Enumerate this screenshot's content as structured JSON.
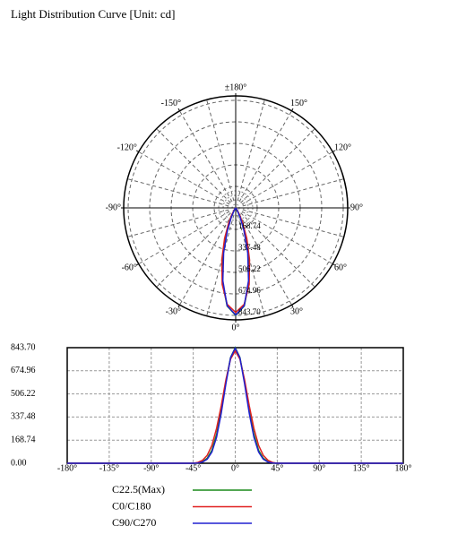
{
  "chart_data": [
    {
      "type": "polar",
      "title": "Light Distribution Curve [Unit: cd]",
      "rlim": [
        0,
        843.7
      ],
      "rticks": [
        {
          "value": 168.74,
          "label": "168.74"
        },
        {
          "value": 337.48,
          "label": "337.48"
        },
        {
          "value": 506.22,
          "label": "506.22"
        },
        {
          "value": 674.96,
          "label": "674.96"
        },
        {
          "value": 843.7,
          "label": "843.70"
        }
      ],
      "angle_ticks": [
        {
          "value": 0,
          "label": "0°"
        },
        {
          "value": 30,
          "label": "30°"
        },
        {
          "value": 60,
          "label": "60°"
        },
        {
          "value": 90,
          "label": "90°"
        },
        {
          "value": 120,
          "label": "120°"
        },
        {
          "value": 150,
          "label": "150°"
        },
        {
          "value": 180,
          "label": "±180°"
        },
        {
          "value": -150,
          "label": "-150°"
        },
        {
          "value": -120,
          "label": "-120°"
        },
        {
          "value": -90,
          "label": "-90°"
        },
        {
          "value": -60,
          "label": "-60°"
        },
        {
          "value": -30,
          "label": "-30°"
        }
      ],
      "x": [
        -180,
        -45,
        -40,
        -35,
        -30,
        -25,
        -20,
        -15,
        -10,
        -5,
        0,
        5,
        10,
        15,
        20,
        25,
        30,
        35,
        40,
        45,
        180
      ],
      "series": [
        {
          "name": "C22.5(Max)",
          "color": "#1a8a1a",
          "values": [
            0,
            0,
            3,
            12,
            37,
            95,
            211,
            387,
            596,
            773,
            843.7,
            773,
            596,
            387,
            211,
            95,
            37,
            12,
            3,
            0,
            0
          ]
        },
        {
          "name": "C0/C180",
          "color": "#e02020",
          "values": [
            0,
            0,
            6,
            22,
            58,
            130,
            255,
            420,
            610,
            760,
            820,
            760,
            610,
            420,
            255,
            130,
            58,
            22,
            6,
            0,
            0
          ]
        },
        {
          "name": "C90/C270",
          "color": "#2020d0",
          "values": [
            0,
            0,
            2,
            9,
            30,
            82,
            190,
            365,
            580,
            770,
            840,
            770,
            580,
            365,
            190,
            82,
            30,
            9,
            2,
            0,
            0
          ]
        }
      ]
    },
    {
      "type": "line",
      "xlim": [
        -180,
        180
      ],
      "xticks": [
        {
          "value": -180,
          "label": "-180°"
        },
        {
          "value": -135,
          "label": "-135°"
        },
        {
          "value": -90,
          "label": "-90°"
        },
        {
          "value": -45,
          "label": "-45°"
        },
        {
          "value": 0,
          "label": "0°"
        },
        {
          "value": 45,
          "label": "45°"
        },
        {
          "value": 90,
          "label": "90°"
        },
        {
          "value": 135,
          "label": "135°"
        },
        {
          "value": 180,
          "label": "180°"
        }
      ],
      "ylim": [
        0,
        843.7
      ],
      "yticks": [
        {
          "value": 0,
          "label": "0.00"
        },
        {
          "value": 168.74,
          "label": "168.74"
        },
        {
          "value": 337.48,
          "label": "337.48"
        },
        {
          "value": 506.22,
          "label": "506.22"
        },
        {
          "value": 674.96,
          "label": "674.96"
        },
        {
          "value": 843.7,
          "label": "843.70"
        }
      ],
      "grid": true,
      "x": [
        -180,
        -45,
        -40,
        -35,
        -30,
        -25,
        -20,
        -15,
        -10,
        -5,
        0,
        5,
        10,
        15,
        20,
        25,
        30,
        35,
        40,
        45,
        180
      ],
      "series": [
        {
          "name": "C22.5(Max)",
          "color": "#1a8a1a",
          "values": [
            0,
            0,
            3,
            12,
            37,
            95,
            211,
            387,
            596,
            773,
            843.7,
            773,
            596,
            387,
            211,
            95,
            37,
            12,
            3,
            0,
            0
          ]
        },
        {
          "name": "C0/C180",
          "color": "#e02020",
          "values": [
            0,
            0,
            6,
            22,
            58,
            130,
            255,
            420,
            610,
            760,
            820,
            760,
            610,
            420,
            255,
            130,
            58,
            22,
            6,
            0,
            0
          ]
        },
        {
          "name": "C90/C270",
          "color": "#2020d0",
          "values": [
            0,
            0,
            2,
            9,
            30,
            82,
            190,
            365,
            580,
            770,
            840,
            770,
            580,
            365,
            190,
            82,
            30,
            9,
            2,
            0,
            0
          ]
        }
      ]
    }
  ]
}
